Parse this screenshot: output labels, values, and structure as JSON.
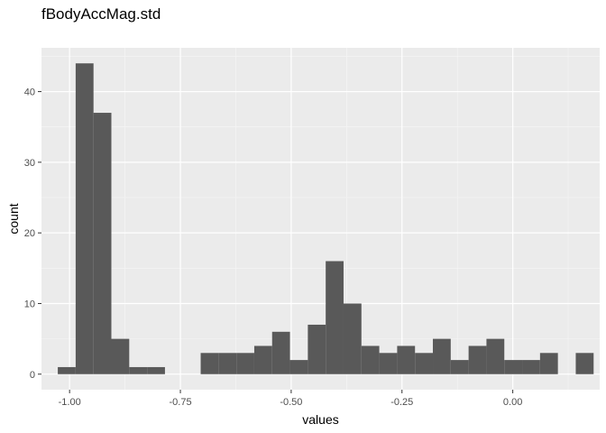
{
  "chart_data": {
    "type": "bar",
    "subtype": "histogram",
    "title": "fBodyAccMag.std",
    "xlabel": "values",
    "ylabel": "count",
    "xlim": [
      -1.0634,
      0.1961
    ],
    "ylim": [
      -2.2,
      46.2
    ],
    "x_ticks": [
      -1.0,
      -0.75,
      -0.5,
      -0.25,
      0.0
    ],
    "x_tick_labels": [
      "-1.00",
      "-0.75",
      "-0.50",
      "-0.25",
      "0.00"
    ],
    "y_ticks": [
      0,
      10,
      20,
      30,
      40
    ],
    "y_tick_labels": [
      "0",
      "10",
      "20",
      "30",
      "40"
    ],
    "bin_width": 0.0403,
    "bins_start": -1.0266,
    "counts": [
      1,
      44,
      37,
      5,
      1,
      1,
      0,
      0,
      3,
      3,
      3,
      4,
      6,
      2,
      7,
      16,
      10,
      4,
      3,
      4,
      3,
      5,
      2,
      4,
      5,
      2,
      2,
      3,
      0,
      3
    ],
    "bar_color": "#595959",
    "panel_background": "#EBEBEB",
    "grid": true,
    "legend": "none"
  }
}
